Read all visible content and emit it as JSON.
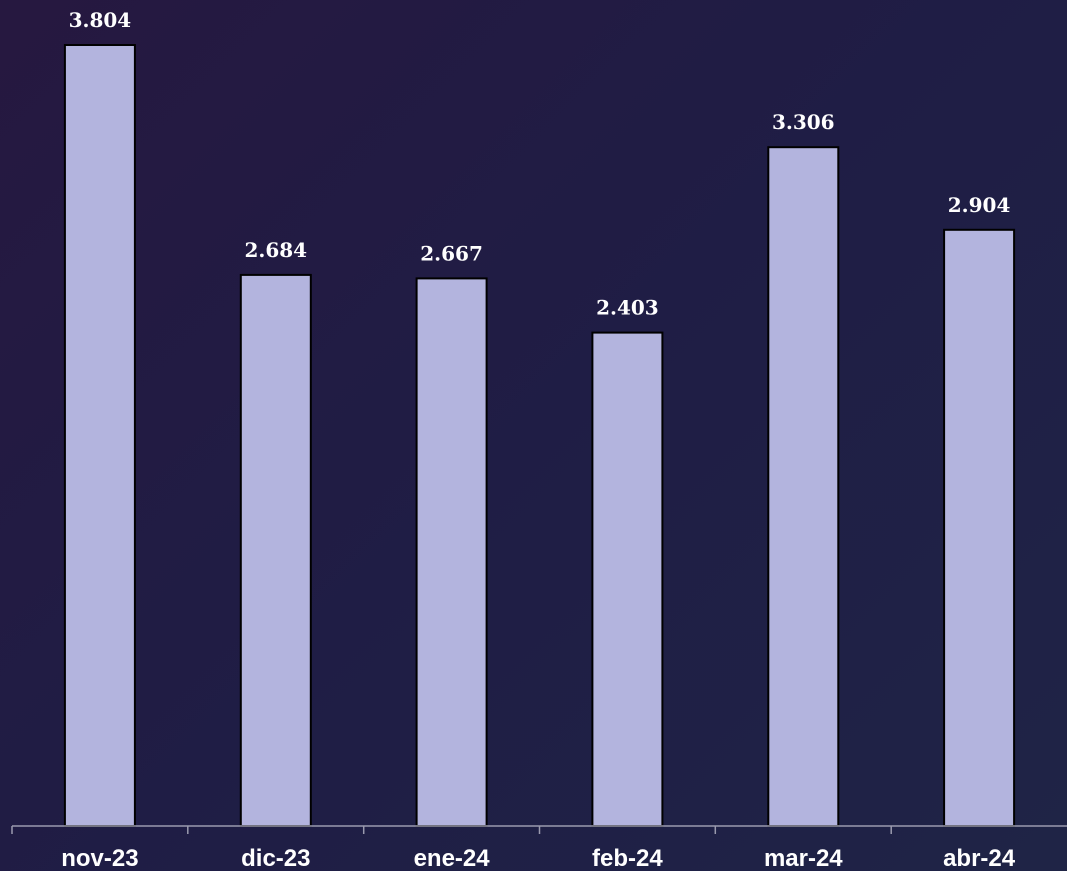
{
  "chart_data": {
    "type": "bar",
    "categories": [
      "nov-23",
      "dic-23",
      "ene-24",
      "feb-24",
      "mar-24",
      "abr-24"
    ],
    "values": [
      3.804,
      2.684,
      2.667,
      2.403,
      3.306,
      2.904
    ],
    "value_labels": [
      "3.804",
      "2.684",
      "2.667",
      "2.403",
      "3.306",
      "2.904"
    ],
    "title": "",
    "xlabel": "",
    "ylabel": "",
    "ylim": [
      0,
      3.804
    ],
    "grid": false,
    "legend": "none",
    "colors": {
      "bar_fill": "#b3b4de",
      "bar_stroke": "#000000",
      "background_start": "#261840",
      "background_end": "#1f2446",
      "text": "#ffffff",
      "axis": "#9a9aae"
    }
  }
}
